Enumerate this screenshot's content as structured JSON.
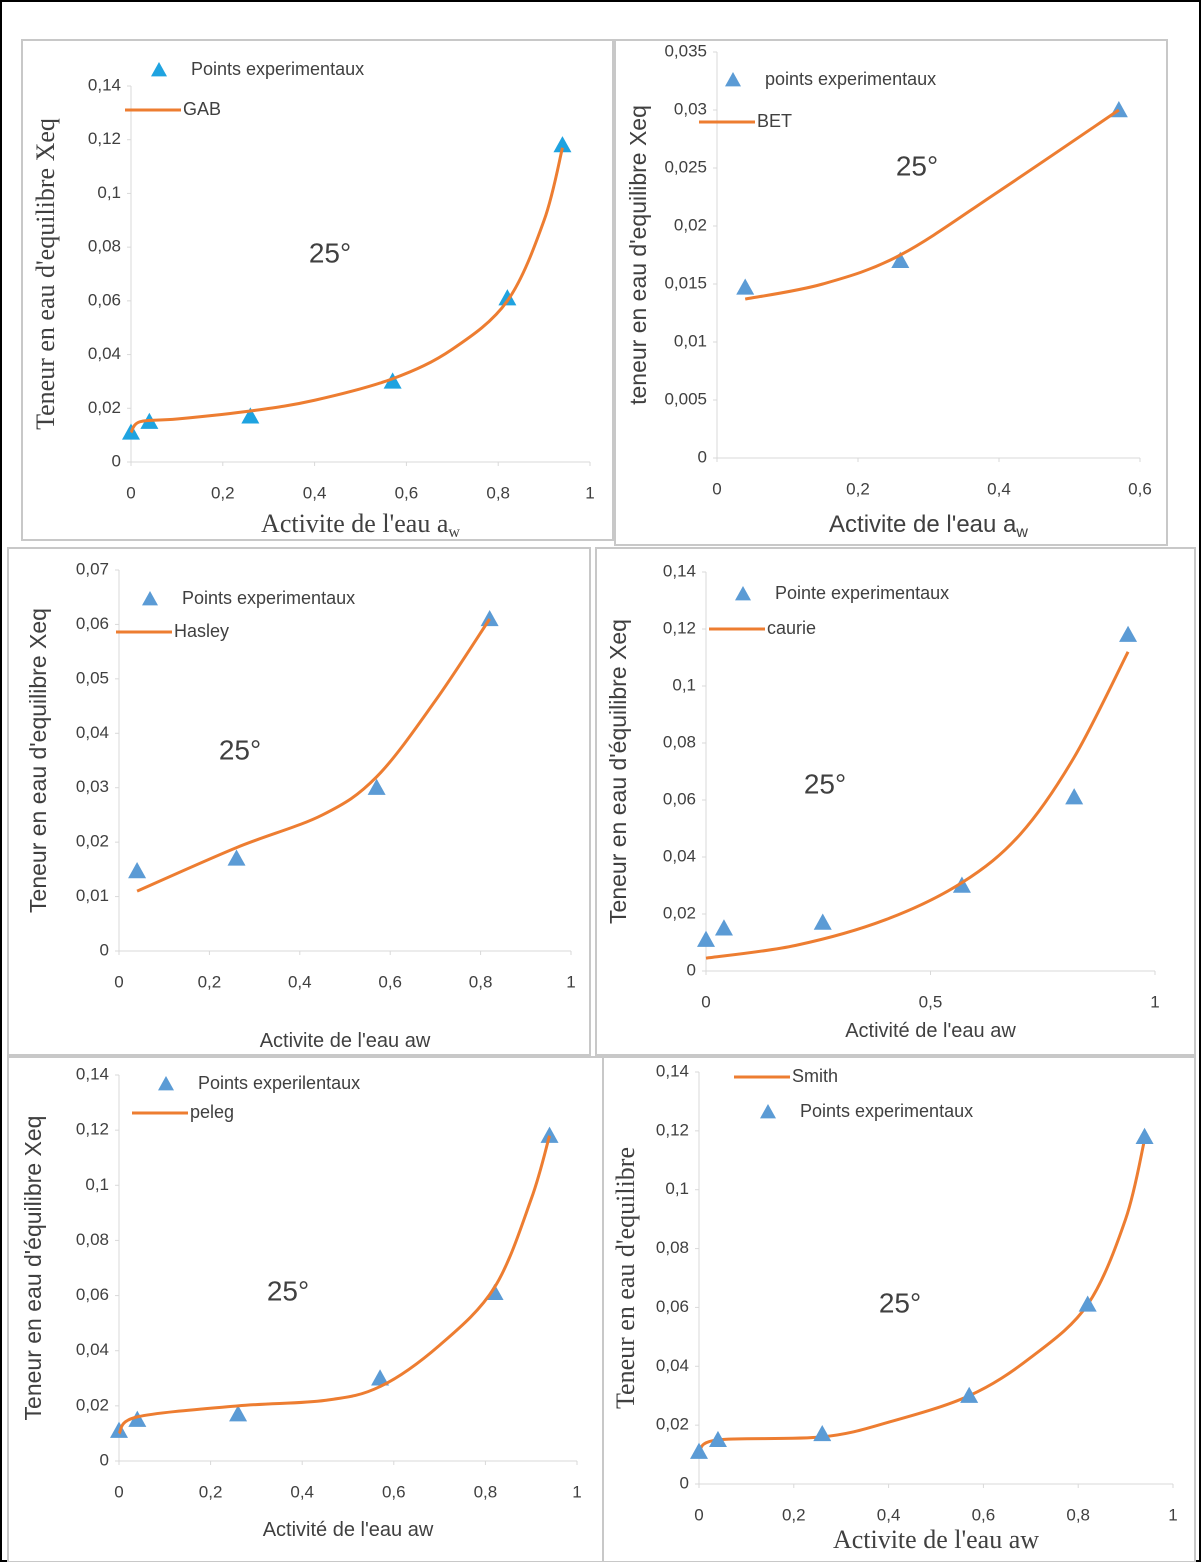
{
  "chart_data": [
    {
      "type": "scatter",
      "annotation": "25°",
      "ylabel": "Teneur en eau d'equilibre Xeq",
      "xlabel": "Activite  de l'eau a",
      "xlabel_subscript": "w",
      "xlim": [
        0,
        1
      ],
      "xticks": [
        0,
        {
          "value": 0.2,
          "label": "0,2"
        },
        {
          "value": 0.4,
          "label": "0,4"
        },
        {
          "value": 0.6,
          "label": "0,6"
        },
        {
          "value": 0.8,
          "label": "0,8"
        },
        1
      ],
      "ylim": [
        0,
        0.14
      ],
      "yticks": [
        0,
        {
          "value": 0.02,
          "label": "0,02"
        },
        {
          "value": 0.04,
          "label": "0,04"
        },
        {
          "value": 0.06,
          "label": "0,06"
        },
        {
          "value": 0.08,
          "label": "0,08"
        },
        {
          "value": 0.1,
          "label": "0,1"
        },
        {
          "value": 0.12,
          "label": "0,12"
        },
        {
          "value": 0.14,
          "label": "0,14"
        }
      ],
      "series": [
        {
          "name": "Points experimentaux",
          "mode": "markers",
          "color": "#1fa3e0",
          "x": [
            0,
            0.04,
            0.26,
            0.57,
            0.82,
            0.94
          ],
          "values": [
            0.011,
            0.015,
            0.017,
            0.03,
            0.061,
            0.118
          ]
        },
        {
          "name": "GAB",
          "mode": "line",
          "color": "#ed7d31",
          "x": [
            0,
            0.02,
            0.1,
            0.26,
            0.4,
            0.57,
            0.7,
            0.82,
            0.9,
            0.94
          ],
          "values": [
            0.011,
            0.015,
            0.016,
            0.019,
            0.023,
            0.031,
            0.042,
            0.06,
            0.09,
            0.117
          ]
        }
      ]
    },
    {
      "type": "scatter",
      "annotation": "25°",
      "ylabel": "teneur en eau d'equilibre Xeq",
      "xlabel": "Activite de l'eau a",
      "xlabel_subscript": "w",
      "xlim": [
        0,
        0.6
      ],
      "xticks": [
        0,
        {
          "value": 0.2,
          "label": "0,2"
        },
        {
          "value": 0.4,
          "label": "0,4"
        },
        {
          "value": 0.6,
          "label": "0,6"
        }
      ],
      "ylim": [
        0,
        0.035
      ],
      "yticks": [
        0,
        {
          "value": 0.005,
          "label": "0,005"
        },
        {
          "value": 0.01,
          "label": "0,01"
        },
        {
          "value": 0.015,
          "label": "0,015"
        },
        {
          "value": 0.02,
          "label": "0,02"
        },
        {
          "value": 0.025,
          "label": "0,025"
        },
        {
          "value": 0.03,
          "label": "0,03"
        },
        {
          "value": 0.035,
          "label": "0,035"
        }
      ],
      "series": [
        {
          "name": "points experimentaux",
          "mode": "markers",
          "color": "#5b9bd5",
          "x": [
            0.04,
            0.26,
            0.57
          ],
          "values": [
            0.0147,
            0.017,
            0.03
          ]
        },
        {
          "name": "BET",
          "mode": "line",
          "color": "#ed7d31",
          "x": [
            0.04,
            0.15,
            0.26,
            0.4,
            0.57
          ],
          "values": [
            0.0137,
            0.015,
            0.0175,
            0.023,
            0.03
          ]
        }
      ]
    },
    {
      "type": "scatter",
      "annotation": "25°",
      "ylabel": "Teneur en eau d'equilibre Xeq",
      "xlabel": "Activite de l'eau aw",
      "xlim": [
        0,
        1
      ],
      "xticks": [
        0,
        {
          "value": 0.2,
          "label": "0,2"
        },
        {
          "value": 0.4,
          "label": "0,4"
        },
        {
          "value": 0.6,
          "label": "0,6"
        },
        {
          "value": 0.8,
          "label": "0,8"
        },
        1
      ],
      "ylim": [
        0,
        0.07
      ],
      "yticks": [
        0,
        {
          "value": 0.01,
          "label": "0,01"
        },
        {
          "value": 0.02,
          "label": "0,02"
        },
        {
          "value": 0.03,
          "label": "0,03"
        },
        {
          "value": 0.04,
          "label": "0,04"
        },
        {
          "value": 0.05,
          "label": "0,05"
        },
        {
          "value": 0.06,
          "label": "0,06"
        },
        {
          "value": 0.07,
          "label": "0,07"
        }
      ],
      "series": [
        {
          "name": "Points experimentaux",
          "mode": "markers",
          "color": "#5b9bd5",
          "x": [
            0.04,
            0.26,
            0.57,
            0.82
          ],
          "values": [
            0.0147,
            0.017,
            0.03,
            0.061
          ]
        },
        {
          "name": "Hasley",
          "mode": "line",
          "color": "#ed7d31",
          "x": [
            0.04,
            0.26,
            0.45,
            0.57,
            0.7,
            0.82
          ],
          "values": [
            0.011,
            0.019,
            0.025,
            0.032,
            0.046,
            0.061
          ]
        }
      ]
    },
    {
      "type": "scatter",
      "annotation": "25°",
      "ylabel": "Teneur en eau d'équilibre Xeq",
      "xlabel": "Activité de l'eau aw",
      "xlim": [
        0,
        1
      ],
      "xticks": [
        0,
        {
          "value": 0.5,
          "label": "0,5"
        },
        1
      ],
      "ylim": [
        0,
        0.14
      ],
      "yticks": [
        0,
        {
          "value": 0.02,
          "label": "0,02"
        },
        {
          "value": 0.04,
          "label": "0,04"
        },
        {
          "value": 0.06,
          "label": "0,06"
        },
        {
          "value": 0.08,
          "label": "0,08"
        },
        {
          "value": 0.1,
          "label": "0,1"
        },
        {
          "value": 0.12,
          "label": "0,12"
        },
        {
          "value": 0.14,
          "label": "0,14"
        }
      ],
      "series": [
        {
          "name": "Pointe experimentaux",
          "mode": "markers",
          "color": "#5b9bd5",
          "x": [
            0,
            0.04,
            0.26,
            0.57,
            0.82,
            0.94
          ],
          "values": [
            0.011,
            0.015,
            0.017,
            0.03,
            0.061,
            0.118
          ]
        },
        {
          "name": "caurie",
          "mode": "line",
          "color": "#ed7d31",
          "x": [
            0,
            0.2,
            0.4,
            0.57,
            0.7,
            0.82,
            0.94
          ],
          "values": [
            0.0045,
            0.009,
            0.018,
            0.031,
            0.048,
            0.075,
            0.112
          ]
        }
      ]
    },
    {
      "type": "scatter",
      "annotation": "25°",
      "ylabel": "Teneur en eau d'équilibre Xeq",
      "xlabel": "Activité de l'eau aw",
      "xlim": [
        0,
        1
      ],
      "xticks": [
        0,
        {
          "value": 0.2,
          "label": "0,2"
        },
        {
          "value": 0.4,
          "label": "0,4"
        },
        {
          "value": 0.6,
          "label": "0,6"
        },
        {
          "value": 0.8,
          "label": "0,8"
        },
        1
      ],
      "ylim": [
        0,
        0.14
      ],
      "yticks": [
        0,
        {
          "value": 0.02,
          "label": "0,02"
        },
        {
          "value": 0.04,
          "label": "0,04"
        },
        {
          "value": 0.06,
          "label": "0,06"
        },
        {
          "value": 0.08,
          "label": "0,08"
        },
        {
          "value": 0.1,
          "label": "0,1"
        },
        {
          "value": 0.12,
          "label": "0,12"
        },
        {
          "value": 0.14,
          "label": "0,14"
        }
      ],
      "series": [
        {
          "name": "Points experilentaux",
          "mode": "markers",
          "color": "#5b9bd5",
          "x": [
            0,
            0.04,
            0.26,
            0.57,
            0.82,
            0.94
          ],
          "values": [
            0.011,
            0.015,
            0.017,
            0.03,
            0.061,
            0.118
          ]
        },
        {
          "name": "peleg",
          "mode": "line",
          "color": "#ed7d31",
          "x": [
            0,
            0.04,
            0.26,
            0.45,
            0.57,
            0.7,
            0.82,
            0.9,
            0.94
          ],
          "values": [
            0.01,
            0.016,
            0.02,
            0.022,
            0.027,
            0.042,
            0.063,
            0.095,
            0.118
          ]
        }
      ]
    },
    {
      "type": "scatter",
      "annotation": "25°",
      "ylabel": "Teneur en eau d'equilibre",
      "xlabel": "Activite de l'eau aw",
      "xlim": [
        0,
        1
      ],
      "xticks": [
        0,
        {
          "value": 0.2,
          "label": "0,2"
        },
        {
          "value": 0.4,
          "label": "0,4"
        },
        {
          "value": 0.6,
          "label": "0,6"
        },
        {
          "value": 0.8,
          "label": "0,8"
        },
        1
      ],
      "ylim": [
        0,
        0.14
      ],
      "yticks": [
        0,
        {
          "value": 0.02,
          "label": "0,02"
        },
        {
          "value": 0.04,
          "label": "0,04"
        },
        {
          "value": 0.06,
          "label": "0,06"
        },
        {
          "value": 0.08,
          "label": "0,08"
        },
        {
          "value": 0.1,
          "label": "0,1"
        },
        {
          "value": 0.12,
          "label": "0,12"
        },
        {
          "value": 0.14,
          "label": "0,14"
        }
      ],
      "series": [
        {
          "name": "Smith",
          "mode": "line",
          "color": "#ed7d31",
          "x": [
            0,
            0.04,
            0.26,
            0.4,
            0.57,
            0.7,
            0.82,
            0.9,
            0.94
          ],
          "values": [
            0.011,
            0.015,
            0.016,
            0.021,
            0.03,
            0.043,
            0.061,
            0.09,
            0.117
          ]
        },
        {
          "name": "Points experimentaux",
          "mode": "markers",
          "color": "#5b9bd5",
          "x": [
            0,
            0.04,
            0.26,
            0.57,
            0.82,
            0.94
          ],
          "values": [
            0.011,
            0.015,
            0.017,
            0.03,
            0.061,
            0.118
          ]
        }
      ]
    }
  ]
}
